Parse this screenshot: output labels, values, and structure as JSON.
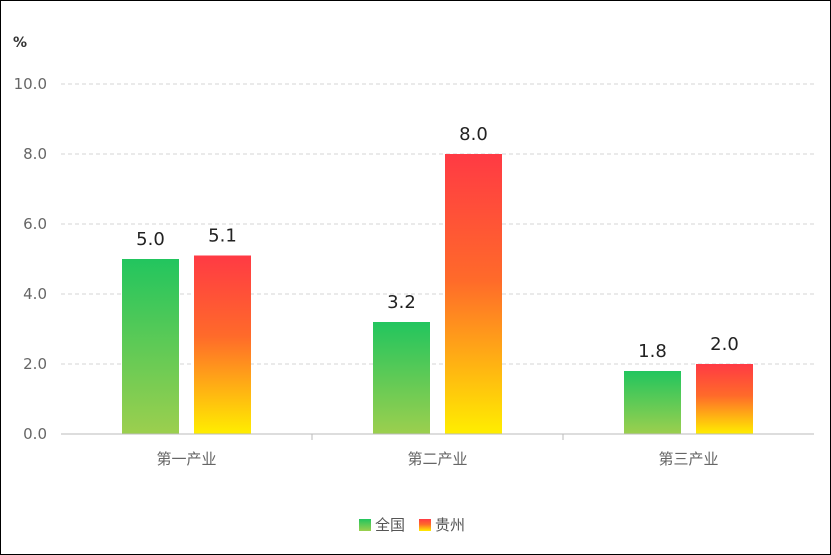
{
  "chart_data": {
    "type": "bar",
    "unit": "%",
    "categories": [
      "第一产业",
      "第二产业",
      "第三产业"
    ],
    "series": [
      {
        "name": "全国",
        "values": [
          5.0,
          3.2,
          1.8
        ],
        "color_top": "#22c55e",
        "color_bottom": "#9ccf4e"
      },
      {
        "name": "贵州",
        "values": [
          5.1,
          8.0,
          2.0
        ],
        "color_top": "#ff3a44",
        "color_bottom": "#ffee00"
      }
    ],
    "yticks": [
      "0.0",
      "2.0",
      "4.0",
      "6.0",
      "8.0",
      "10.0"
    ],
    "ylim": [
      0,
      10
    ],
    "grid": true,
    "legend_position": "bottom-center",
    "data_labels": true
  }
}
